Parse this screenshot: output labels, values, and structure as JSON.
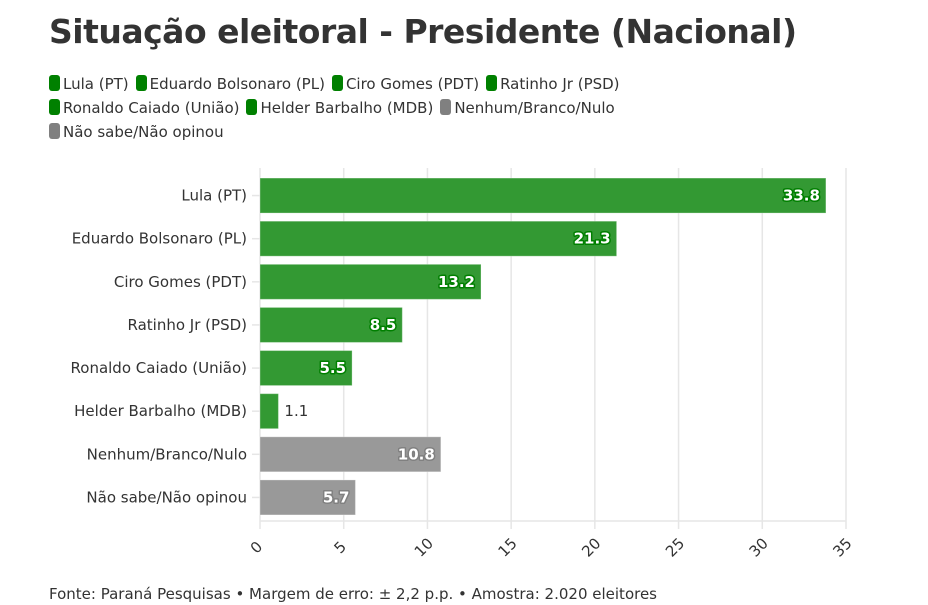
{
  "chart_data": {
    "type": "bar",
    "orientation": "horizontal",
    "title": "Situação eleitoral - Presidente (Nacional)",
    "categories": [
      "Lula (PT)",
      "Eduardo Bolsonaro (PL)",
      "Ciro Gomes (PDT)",
      "Ratinho Jr (PSD)",
      "Ronaldo Caiado (União)",
      "Helder Barbalho (MDB)",
      "Nenhum/Branco/Nulo",
      "Não sabe/Não opinou"
    ],
    "values": [
      33.8,
      21.3,
      13.2,
      8.5,
      5.5,
      1.1,
      10.8,
      5.7
    ],
    "value_labels": [
      "33.8",
      "21.3",
      "13.2",
      "8.5",
      "5.5",
      "1.1",
      "10.8",
      "5.7"
    ],
    "colors": [
      "#339933",
      "#339933",
      "#339933",
      "#339933",
      "#339933",
      "#339933",
      "#999999",
      "#999999"
    ],
    "label_outline_colors": [
      "#007f00",
      "#007f00",
      "#007f00",
      "#007f00",
      "#007f00",
      "#007f00",
      "#808080",
      "#808080"
    ],
    "legend": [
      {
        "label": "Lula (PT)",
        "color": "#008000"
      },
      {
        "label": "Eduardo Bolsonaro (PL)",
        "color": "#008000"
      },
      {
        "label": "Ciro Gomes (PDT)",
        "color": "#008000"
      },
      {
        "label": "Ratinho Jr (PSD)",
        "color": "#008000"
      },
      {
        "label": "Ronaldo Caiado (União)",
        "color": "#008000"
      },
      {
        "label": "Helder Barbalho (MDB)",
        "color": "#008000"
      },
      {
        "label": "Nenhum/Branco/Nulo",
        "color": "#808080"
      },
      {
        "label": "Não sabe/Não opinou",
        "color": "#808080"
      }
    ],
    "legend_position": "top-left",
    "xlabel": "",
    "ylabel": "",
    "xlim": [
      0,
      35
    ],
    "xticks": [
      0,
      5,
      10,
      15,
      20,
      25,
      30,
      35
    ],
    "xtick_labels": [
      "0",
      "5",
      "10",
      "15",
      "20",
      "25",
      "30",
      "35"
    ],
    "grid": true
  },
  "footer": {
    "source": "Fonte: Paraná Pesquisas • Margem de erro: ± 2,2 p.p. • Amostra: 2.020 eleitores"
  }
}
